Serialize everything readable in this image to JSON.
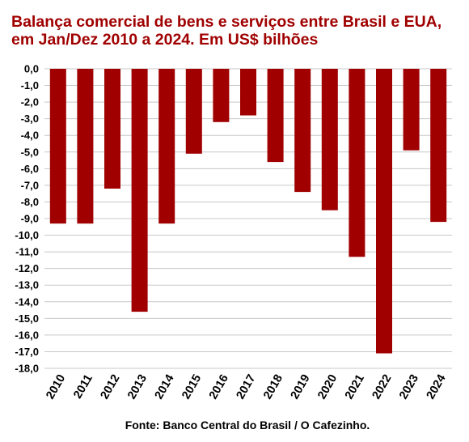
{
  "chart_data": {
    "type": "bar",
    "title": "Balança comercial de bens e serviços entre Brasil e EUA, em Jan/Dez 2010 a 2024. Em US$ bilhões",
    "xlabel": "",
    "ylabel": "",
    "categories": [
      "2010",
      "2011",
      "2012",
      "2013",
      "2014",
      "2015",
      "2016",
      "2017",
      "2018",
      "2019",
      "2020",
      "2021",
      "2022",
      "2023",
      "2024"
    ],
    "values": [
      -9.3,
      -9.3,
      -7.2,
      -14.6,
      -9.3,
      -5.1,
      -3.2,
      -2.8,
      -5.6,
      -7.4,
      -8.5,
      -11.3,
      -17.1,
      -4.9,
      -9.2
    ],
    "ylim": [
      -18,
      0
    ],
    "yticks": [
      "0,0",
      "-1,0",
      "-2,0",
      "-3,0",
      "-4,0",
      "-5,0",
      "-6,0",
      "-7,0",
      "-8,0",
      "-9,0",
      "-10,0",
      "-11,0",
      "-12,0",
      "-13,0",
      "-14,0",
      "-15,0",
      "-16,0",
      "-17,0",
      "-18,0"
    ],
    "grid": true,
    "legend": "none",
    "bar_color": "#a00000",
    "title_color": "#a00000",
    "source": "Fonte: Banco Central do Brasil / O Cafezinho."
  }
}
